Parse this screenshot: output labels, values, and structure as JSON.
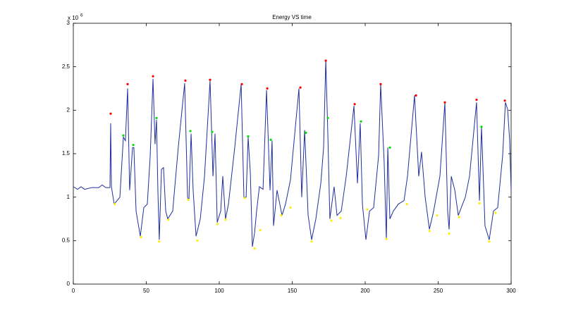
{
  "chart_data": {
    "type": "line",
    "title": "Energy VS time",
    "y_exponent_base": "x 10",
    "y_exponent": "6",
    "xlim": [
      0,
      300
    ],
    "xticks": [
      0,
      50,
      100,
      150,
      200,
      250,
      300
    ],
    "ylim": [
      0,
      3
    ],
    "yticks": [
      0,
      0.5,
      1,
      1.5,
      2,
      2.5,
      3
    ],
    "series": [
      {
        "color": "#1f2f9f",
        "mode": "line",
        "x": [
          0,
          2.9,
          5.3,
          7.7,
          12.6,
          17.4,
          19.8,
          22.2,
          25.1,
          25.6,
          26.1,
          28,
          31.9,
          34.3,
          35.7,
          37.2,
          38.6,
          40.6,
          41.5,
          43,
          45.9,
          48.3,
          50.7,
          52.7,
          54.6,
          56,
          57,
          58,
          58.9,
          60.4,
          61.8,
          63.3,
          64.7,
          68.1,
          71.9,
          76.3,
          78.3,
          79.2,
          80.7,
          82.1,
          84.1,
          87,
          89.9,
          93.7,
          95.7,
          97.1,
          98.6,
          101,
          102.4,
          104.3,
          106.3,
          110.6,
          115,
          116.9,
          118.4,
          119.8,
          121.3,
          122.7,
          124.2,
          125.6,
          127.5,
          130,
          132.4,
          134.8,
          136.2,
          137.2,
          139.6,
          143,
          145.4,
          148.8,
          154.6,
          156.5,
          158.5,
          160.9,
          163.3,
          166.2,
          169.6,
          171.5,
          173,
          174.4,
          175.8,
          178.7,
          180.7,
          183.6,
          187,
          192.3,
          194.7,
          196.6,
          198.1,
          200.5,
          203,
          205.8,
          209.2,
          210.6,
          213,
          214.5,
          215.5,
          216.9,
          219.3,
          222.7,
          226.6,
          229,
          233.8,
          236.7,
          238.6,
          241.1,
          244,
          246.9,
          251.2,
          254.6,
          256.5,
          257.5,
          259,
          261.4,
          263.8,
          268.6,
          271.5,
          276.3,
          278.3,
          279.7,
          282.1,
          285,
          287.9,
          290.8,
          294.2,
          296.1,
          297.6,
          299,
          300
        ],
        "values": [
          1.12,
          1.09,
          1.12,
          1.09,
          1.11,
          1.11,
          1.14,
          1.11,
          1.11,
          1.85,
          1.12,
          0.92,
          1.0,
          1.69,
          1.65,
          2.25,
          1.08,
          1.57,
          1.57,
          0.84,
          0.55,
          0.88,
          0.92,
          1.48,
          2.36,
          1.61,
          1.89,
          1.04,
          0.51,
          1.32,
          1.34,
          0.84,
          0.75,
          0.84,
          1.57,
          2.31,
          1.0,
          0.96,
          1.73,
          1.08,
          0.55,
          0.75,
          1.24,
          2.34,
          1.24,
          1.73,
          0.71,
          0.84,
          1.24,
          0.75,
          0.92,
          1.57,
          2.3,
          1.0,
          1.0,
          1.69,
          1.28,
          0.43,
          0.59,
          0.84,
          1.12,
          1.09,
          2.23,
          1.08,
          1.65,
          0.67,
          1.08,
          0.79,
          0.92,
          1.2,
          2.25,
          1.0,
          1.77,
          0.79,
          0.51,
          0.75,
          1.16,
          1.57,
          2.58,
          1.73,
          0.75,
          1.12,
          0.79,
          0.84,
          1.24,
          2.05,
          1.16,
          1.85,
          0.92,
          0.51,
          0.84,
          0.88,
          1.48,
          2.3,
          1.4,
          0.51,
          1.57,
          0.75,
          0.84,
          0.92,
          0.96,
          1.24,
          2.17,
          1.24,
          1.52,
          1.0,
          0.63,
          0.84,
          1.24,
          2.09,
          0.84,
          0.63,
          1.24,
          1.08,
          0.79,
          1.0,
          1.24,
          2.09,
          0.96,
          1.81,
          0.67,
          0.51,
          0.84,
          0.88,
          1.48,
          2.09,
          2.01,
          1.65,
          1.08
        ]
      },
      {
        "color": "#ff0000",
        "mode": "markers",
        "x": [
          25.6,
          37.2,
          54.6,
          76.8,
          93.7,
          115.5,
          132.9,
          155.6,
          173,
          192.8,
          210.6,
          234.8,
          254.6,
          276.3,
          295.7
        ],
        "values": [
          1.96,
          2.3,
          2.39,
          2.34,
          2.35,
          2.3,
          2.25,
          2.26,
          2.57,
          2.07,
          2.3,
          2.17,
          2.09,
          2.12,
          2.11
        ]
      },
      {
        "color": "#00dd00",
        "mode": "markers",
        "x": [
          34.3,
          41.1,
          57,
          80.2,
          95.2,
          119.8,
          135.3,
          159.4,
          174.4,
          197.1,
          216.9,
          279.7
        ],
        "values": [
          1.71,
          1.6,
          1.91,
          1.76,
          1.75,
          1.7,
          1.66,
          1.74,
          1.91,
          1.87,
          1.57,
          1.81
        ]
      },
      {
        "color": "#ffee00",
        "mode": "markers",
        "x": [
          28.5,
          46.4,
          58.9,
          65.2,
          78.7,
          85,
          98.6,
          104.3,
          117.4,
          124.2,
          128,
          142.5,
          148.8,
          163.3,
          176.8,
          183.1,
          201.4,
          214.5,
          228.5,
          244,
          249.3,
          257.5,
          264.3,
          278.3,
          285,
          289.4
        ],
        "values": [
          0.92,
          0.54,
          0.49,
          0.74,
          0.97,
          0.5,
          0.69,
          0.74,
          0.99,
          0.41,
          0.62,
          0.79,
          0.88,
          0.49,
          0.73,
          0.76,
          0.86,
          0.52,
          0.92,
          0.61,
          0.79,
          0.58,
          0.77,
          0.93,
          0.49,
          0.82
        ]
      }
    ]
  }
}
